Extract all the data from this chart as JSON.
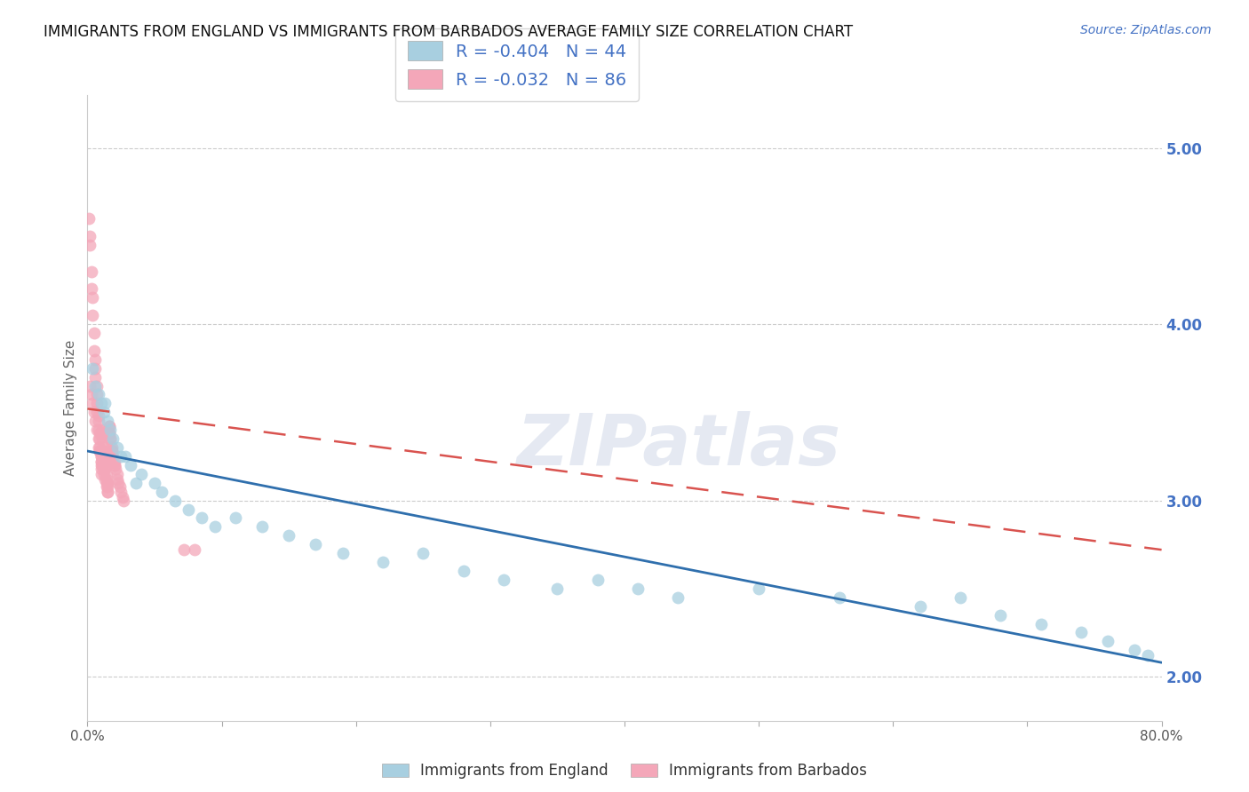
{
  "title": "IMMIGRANTS FROM ENGLAND VS IMMIGRANTS FROM BARBADOS AVERAGE FAMILY SIZE CORRELATION CHART",
  "source": "Source: ZipAtlas.com",
  "ylabel": "Average Family Size",
  "watermark": "ZIPatlas",
  "legend_england": "R = -0.404   N = 44",
  "legend_barbados": "R = -0.032   N = 86",
  "england_color": "#a8cfe0",
  "barbados_color": "#f4a7b9",
  "england_line_color": "#2f6fad",
  "barbados_line_color": "#d9534f",
  "text_color": "#4472c4",
  "xlim": [
    0.0,
    0.8
  ],
  "ylim": [
    1.75,
    5.3
  ],
  "yticks": [
    2.0,
    3.0,
    4.0,
    5.0
  ],
  "xticks": [
    0.0,
    0.1,
    0.2,
    0.3,
    0.4,
    0.5,
    0.6,
    0.7,
    0.8
  ],
  "xtick_labels": [
    "0.0%",
    "",
    "",
    "",
    "",
    "",
    "",
    "",
    "80.0%"
  ],
  "eng_line_x0": 0.0,
  "eng_line_y0": 3.28,
  "eng_line_x1": 0.8,
  "eng_line_y1": 2.08,
  "barb_line_x0": 0.0,
  "barb_line_y0": 3.52,
  "barb_line_x1": 0.8,
  "barb_line_y1": 2.72,
  "england_x": [
    0.004,
    0.006,
    0.008,
    0.01,
    0.012,
    0.013,
    0.015,
    0.017,
    0.019,
    0.022,
    0.025,
    0.028,
    0.032,
    0.036,
    0.04,
    0.05,
    0.055,
    0.065,
    0.075,
    0.085,
    0.095,
    0.11,
    0.13,
    0.15,
    0.17,
    0.19,
    0.22,
    0.25,
    0.28,
    0.31,
    0.35,
    0.38,
    0.41,
    0.44,
    0.5,
    0.56,
    0.62,
    0.65,
    0.68,
    0.71,
    0.74,
    0.76,
    0.78,
    0.79
  ],
  "england_y": [
    3.75,
    3.65,
    3.6,
    3.55,
    3.5,
    3.55,
    3.45,
    3.4,
    3.35,
    3.3,
    3.25,
    3.25,
    3.2,
    3.1,
    3.15,
    3.1,
    3.05,
    3.0,
    2.95,
    2.9,
    2.85,
    2.9,
    2.85,
    2.8,
    2.75,
    2.7,
    2.65,
    2.7,
    2.6,
    2.55,
    2.5,
    2.55,
    2.5,
    2.45,
    2.5,
    2.45,
    2.4,
    2.45,
    2.35,
    2.3,
    2.25,
    2.2,
    2.15,
    2.12
  ],
  "barbados_x": [
    0.001,
    0.002,
    0.002,
    0.003,
    0.003,
    0.004,
    0.004,
    0.005,
    0.005,
    0.006,
    0.006,
    0.006,
    0.007,
    0.007,
    0.007,
    0.007,
    0.008,
    0.008,
    0.008,
    0.009,
    0.009,
    0.009,
    0.009,
    0.01,
    0.01,
    0.01,
    0.01,
    0.01,
    0.011,
    0.011,
    0.011,
    0.012,
    0.012,
    0.012,
    0.013,
    0.013,
    0.013,
    0.014,
    0.014,
    0.015,
    0.015,
    0.015,
    0.016,
    0.016,
    0.017,
    0.017,
    0.018,
    0.018,
    0.019,
    0.02,
    0.002,
    0.003,
    0.004,
    0.005,
    0.006,
    0.007,
    0.008,
    0.008,
    0.009,
    0.01,
    0.01,
    0.011,
    0.012,
    0.012,
    0.013,
    0.014,
    0.014,
    0.015,
    0.016,
    0.016,
    0.017,
    0.018,
    0.018,
    0.019,
    0.02,
    0.02,
    0.021,
    0.022,
    0.022,
    0.023,
    0.024,
    0.025,
    0.026,
    0.027,
    0.072,
    0.08
  ],
  "barbados_y": [
    4.6,
    4.5,
    4.45,
    4.3,
    4.2,
    4.15,
    4.05,
    3.95,
    3.85,
    3.8,
    3.75,
    3.7,
    3.65,
    3.6,
    3.55,
    3.5,
    3.48,
    3.45,
    3.4,
    3.38,
    3.35,
    3.3,
    3.28,
    3.25,
    3.22,
    3.2,
    3.18,
    3.15,
    3.4,
    3.38,
    3.35,
    3.3,
    3.28,
    3.25,
    3.22,
    3.2,
    3.18,
    3.15,
    3.12,
    3.1,
    3.08,
    3.05,
    3.42,
    3.38,
    3.35,
    3.3,
    3.28,
    3.25,
    3.22,
    3.2,
    3.65,
    3.6,
    3.55,
    3.5,
    3.45,
    3.4,
    3.35,
    3.3,
    3.28,
    3.25,
    3.22,
    3.2,
    3.18,
    3.15,
    3.12,
    3.1,
    3.08,
    3.05,
    3.42,
    3.38,
    3.35,
    3.3,
    3.28,
    3.25,
    3.22,
    3.2,
    3.18,
    3.15,
    3.12,
    3.1,
    3.08,
    3.05,
    3.02,
    3.0,
    2.72,
    2.72
  ]
}
